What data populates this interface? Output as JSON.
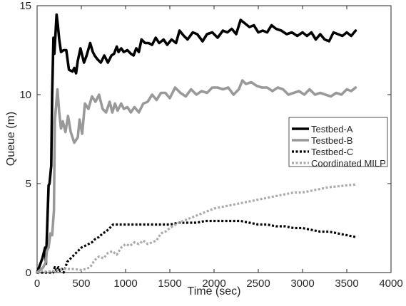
{
  "chart_data": {
    "type": "line",
    "title": "",
    "xlabel": "Time (sec)",
    "ylabel": "Queue (m)",
    "xlim": [
      0,
      4000
    ],
    "ylim": [
      0,
      15
    ],
    "xticks": [
      0,
      500,
      1000,
      1500,
      2000,
      2500,
      3000,
      3500,
      4000
    ],
    "yticks": [
      0,
      5,
      10,
      15
    ],
    "grid": false,
    "legend_position": "right",
    "series": [
      {
        "name": "Testbed-A",
        "color": "#000000",
        "style": "solid",
        "x": [
          0,
          60,
          90,
          100,
          130,
          140,
          160,
          170,
          185,
          195,
          220,
          235,
          250,
          270,
          300,
          330,
          360,
          400,
          420,
          440,
          460,
          490,
          530,
          560,
          600,
          630,
          650,
          680,
          720,
          760,
          800,
          840,
          870,
          900,
          920,
          950,
          980,
          1020,
          1060,
          1090,
          1120,
          1150,
          1180,
          1220,
          1260,
          1300,
          1340,
          1380,
          1430,
          1470,
          1520,
          1570,
          1610,
          1660,
          1700,
          1760,
          1810,
          1870,
          1920,
          1980,
          2040,
          2100,
          2150,
          2200,
          2250,
          2300,
          2350,
          2400,
          2450,
          2500,
          2550,
          2600,
          2650,
          2700,
          2760,
          2820,
          2880,
          2940,
          3000,
          3050,
          3100,
          3150,
          3200,
          3250,
          3300,
          3350,
          3400,
          3450,
          3500,
          3550,
          3600
        ],
        "y": [
          0,
          0.8,
          1.4,
          0.5,
          4.9,
          5,
          6,
          10,
          13.2,
          12.3,
          14.5,
          13.9,
          13.1,
          12.4,
          12.5,
          12.5,
          11.4,
          11.3,
          11.5,
          11.2,
          11.9,
          12.6,
          11.8,
          12.2,
          12.9,
          12.4,
          12.2,
          12,
          11.8,
          12.2,
          11.8,
          12.2,
          12.3,
          12.7,
          12.4,
          12.6,
          12.4,
          12.5,
          12.3,
          12.2,
          12.6,
          12.4,
          13.1,
          12.9,
          12.9,
          12.8,
          13.2,
          12.9,
          13.1,
          12.8,
          13.1,
          12.9,
          13.6,
          13.3,
          13.1,
          13.5,
          13.4,
          13.0,
          13.4,
          13.5,
          13.2,
          13.6,
          13.5,
          13.7,
          13.4,
          14.2,
          14.0,
          13.8,
          13.9,
          13.5,
          13.6,
          13.5,
          13.9,
          13.7,
          13.6,
          13.4,
          13.5,
          13.3,
          13.5,
          13.3,
          13.5,
          13.1,
          13.4,
          13.1,
          13.0,
          13.5,
          13.4,
          13.3,
          13.5,
          13.3,
          13.6
        ]
      },
      {
        "name": "Testbed-B",
        "color": "#999999",
        "style": "solid",
        "x": [
          0,
          70,
          100,
          110,
          130,
          150,
          170,
          190,
          200,
          230,
          250,
          270,
          290,
          320,
          350,
          380,
          420,
          460,
          480,
          510,
          540,
          580,
          620,
          660,
          700,
          740,
          780,
          820,
          850,
          880,
          910,
          950,
          980,
          1020,
          1060,
          1100,
          1150,
          1200,
          1250,
          1300,
          1350,
          1400,
          1450,
          1500,
          1560,
          1620,
          1680,
          1740,
          1800,
          1860,
          1920,
          1980,
          2040,
          2100,
          2160,
          2220,
          2280,
          2320,
          2360,
          2420,
          2480,
          2540,
          2600,
          2660,
          2720,
          2780,
          2840,
          2900,
          2960,
          3020,
          3080,
          3140,
          3200,
          3260,
          3320,
          3380,
          3440,
          3500,
          3550,
          3600
        ],
        "y": [
          0,
          0.3,
          0.6,
          1.2,
          1.4,
          2.2,
          2.1,
          3.5,
          8.5,
          10.3,
          9.0,
          8.1,
          8.5,
          7.9,
          8.8,
          7.9,
          7.3,
          7.6,
          8.6,
          7.8,
          9.5,
          9.2,
          9.9,
          9.6,
          10.0,
          9.2,
          9.0,
          9.6,
          9.0,
          9.5,
          9.1,
          9.5,
          9.2,
          9.3,
          9.0,
          9.3,
          9.0,
          9.5,
          9.6,
          10.0,
          9.7,
          10.1,
          10.1,
          9.8,
          10.4,
          10.1,
          9.9,
          10.3,
          10.0,
          10.2,
          10.1,
          10.4,
          10.4,
          10.3,
          10.4,
          10.0,
          10.3,
          10.8,
          10.6,
          10.7,
          10.5,
          10.4,
          10.4,
          10.2,
          10.4,
          10.3,
          10.0,
          10.1,
          10.2,
          10.0,
          10.3,
          10.0,
          10.1,
          10.0,
          9.9,
          10.1,
          10.0,
          10.3,
          10.2,
          10.4
        ]
      },
      {
        "name": "Testbed-C",
        "color": "#000000",
        "style": "dotted",
        "x": [
          0,
          180,
          200,
          220,
          240,
          260,
          280,
          300,
          340,
          380,
          420,
          460,
          500,
          540,
          580,
          620,
          660,
          700,
          740,
          780,
          820,
          860,
          900,
          1000,
          1100,
          1200,
          1300,
          1400,
          1500,
          1600,
          1700,
          1800,
          1900,
          2000,
          2100,
          2200,
          2300,
          2400,
          2500,
          2600,
          2700,
          2800,
          2900,
          3000,
          3100,
          3200,
          3300,
          3400,
          3500,
          3600
        ],
        "y": [
          0,
          0,
          0.3,
          0.1,
          0.3,
          0.1,
          0.2,
          0,
          0.6,
          0.8,
          1.0,
          1.2,
          1.4,
          1.5,
          1.6,
          1.7,
          1.9,
          2.0,
          2.2,
          2.3,
          2.5,
          2.7,
          2.7,
          2.7,
          2.7,
          2.7,
          2.7,
          2.7,
          2.7,
          2.8,
          2.8,
          2.8,
          2.9,
          2.9,
          2.9,
          2.9,
          2.9,
          2.8,
          2.7,
          2.7,
          2.6,
          2.6,
          2.5,
          2.5,
          2.4,
          2.3,
          2.3,
          2.2,
          2.1,
          2.0
        ]
      },
      {
        "name": "Coordinated MILP",
        "color": "#aaaaaa",
        "style": "dotted",
        "x": [
          0,
          50,
          100,
          200,
          300,
          400,
          500,
          550,
          600,
          650,
          700,
          750,
          800,
          850,
          900,
          950,
          1000,
          1050,
          1100,
          1150,
          1200,
          1250,
          1300,
          1350,
          1400,
          1450,
          1500,
          1600,
          1700,
          1800,
          1900,
          2000,
          2100,
          2200,
          2300,
          2400,
          2500,
          2600,
          2700,
          2800,
          2900,
          3000,
          3100,
          3200,
          3300,
          3400,
          3500,
          3600
        ],
        "y": [
          0,
          0.1,
          0.05,
          0.1,
          0.2,
          0.2,
          0.15,
          0.2,
          0.3,
          0.7,
          0.9,
          0.8,
          1.1,
          1.2,
          1.0,
          1.4,
          1.6,
          1.5,
          1.7,
          1.6,
          1.8,
          1.6,
          1.7,
          1.8,
          2.2,
          2.3,
          2.5,
          2.8,
          3.0,
          3.2,
          3.4,
          3.6,
          3.7,
          3.8,
          3.9,
          4.0,
          4.1,
          4.2,
          4.3,
          4.4,
          4.5,
          4.5,
          4.6,
          4.7,
          4.8,
          4.85,
          4.9,
          4.95
        ]
      }
    ]
  }
}
